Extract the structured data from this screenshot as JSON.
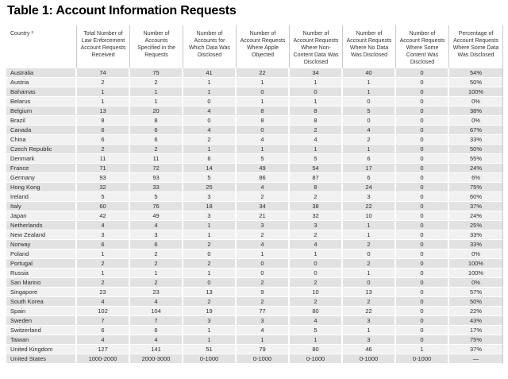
{
  "title": "Table 1: Account Information Requests",
  "table": {
    "columns": [
      "Country ²",
      "Total Number of Law Enforcement Account Requests Received",
      "Number of Accounts Specified in the Requests",
      "Number of Accounts for Which Data Was Disclosed",
      "Number of Account Requests Where Apple Objected",
      "Number of Account Requests Where Non-Content Data Was Disclosed",
      "Number of Account Requests Where No Data Was Disclosed",
      "Number of Account Requests Where Some Content Was Disclosed",
      "Percentage of Account Requests Where Some Data Was Disclosed"
    ],
    "rows": [
      [
        "Australia",
        "74",
        "75",
        "41",
        "22",
        "34",
        "40",
        "0",
        "54%"
      ],
      [
        "Austria",
        "2",
        "2",
        "1",
        "1",
        "1",
        "1",
        "0",
        "50%"
      ],
      [
        "Bahamas",
        "1",
        "1",
        "1",
        "0",
        "0",
        "1",
        "0",
        "100%"
      ],
      [
        "Belarus",
        "1",
        "1",
        "0",
        "1",
        "1",
        "0",
        "0",
        "0%"
      ],
      [
        "Belgium",
        "13",
        "20",
        "4",
        "8",
        "8",
        "5",
        "0",
        "38%"
      ],
      [
        "Brazil",
        "8",
        "8",
        "0",
        "8",
        "8",
        "0",
        "0",
        "0%"
      ],
      [
        "Canada",
        "6",
        "6",
        "4",
        "0",
        "2",
        "4",
        "0",
        "67%"
      ],
      [
        "China",
        "6",
        "6",
        "2",
        "4",
        "4",
        "2",
        "0",
        "33%"
      ],
      [
        "Czech Republic",
        "2",
        "2",
        "1",
        "1",
        "1",
        "1",
        "0",
        "50%"
      ],
      [
        "Denmark",
        "11",
        "11",
        "6",
        "5",
        "5",
        "6",
        "0",
        "55%"
      ],
      [
        "France",
        "71",
        "72",
        "14",
        "49",
        "54",
        "17",
        "0",
        "24%"
      ],
      [
        "Germany",
        "93",
        "93",
        "5",
        "86",
        "87",
        "6",
        "0",
        "6%"
      ],
      [
        "Hong Kong",
        "32",
        "33",
        "25",
        "4",
        "8",
        "24",
        "0",
        "75%"
      ],
      [
        "Ireland",
        "5",
        "5",
        "3",
        "2",
        "2",
        "3",
        "0",
        "60%"
      ],
      [
        "Italy",
        "60",
        "76",
        "18",
        "34",
        "38",
        "22",
        "0",
        "37%"
      ],
      [
        "Japan",
        "42",
        "49",
        "3",
        "21",
        "32",
        "10",
        "0",
        "24%"
      ],
      [
        "Netherlands",
        "4",
        "4",
        "1",
        "3",
        "3",
        "1",
        "0",
        "25%"
      ],
      [
        "New Zealand",
        "3",
        "3",
        "1",
        "2",
        "2",
        "1",
        "0",
        "33%"
      ],
      [
        "Norway",
        "6",
        "6",
        "2",
        "4",
        "4",
        "2",
        "0",
        "33%"
      ],
      [
        "Poland",
        "1",
        "2",
        "0",
        "1",
        "1",
        "0",
        "0",
        "0%"
      ],
      [
        "Portugal",
        "2",
        "2",
        "2",
        "0",
        "0",
        "2",
        "0",
        "100%"
      ],
      [
        "Russia",
        "1",
        "1",
        "1",
        "0",
        "0",
        "1",
        "0",
        "100%"
      ],
      [
        "San Marino",
        "2",
        "2",
        "0",
        "2",
        "2",
        "0",
        "0",
        "0%"
      ],
      [
        "Singapore",
        "23",
        "23",
        "13",
        "9",
        "10",
        "13",
        "0",
        "57%"
      ],
      [
        "South Korea",
        "4",
        "4",
        "2",
        "2",
        "2",
        "2",
        "0",
        "50%"
      ],
      [
        "Spain",
        "102",
        "104",
        "19",
        "77",
        "80",
        "22",
        "0",
        "22%"
      ],
      [
        "Sweden",
        "7",
        "7",
        "3",
        "3",
        "4",
        "3",
        "0",
        "43%"
      ],
      [
        "Switzerland",
        "6",
        "6",
        "1",
        "4",
        "5",
        "1",
        "0",
        "17%"
      ],
      [
        "Taiwan",
        "4",
        "4",
        "1",
        "1",
        "1",
        "3",
        "0",
        "75%"
      ],
      [
        "United Kingdom",
        "127",
        "141",
        "51",
        "79",
        "80",
        "46",
        "1",
        "37%"
      ],
      [
        "United States",
        "1000-2000",
        "2000-3000",
        "0-1000",
        "0-1000",
        "0-1000",
        "0-1000",
        "0-1000",
        "—"
      ]
    ]
  },
  "colors": {
    "row_odd": "#e2e2e2",
    "row_even": "#f1f1f1",
    "header_divider": "#c9c9c9",
    "title_color": "#000000",
    "text_color": "#2b2b2b"
  }
}
